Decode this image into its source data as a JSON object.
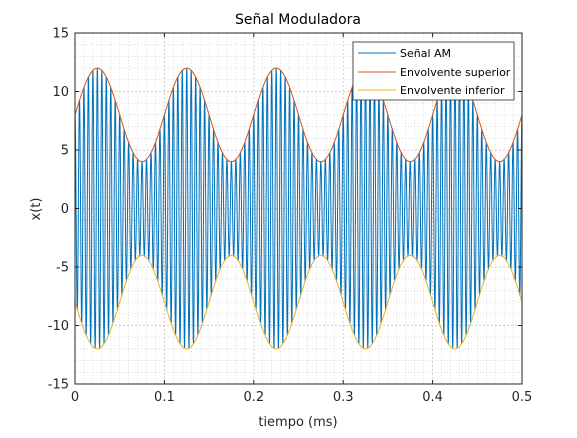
{
  "chart_data": {
    "type": "line",
    "title": "Señal Moduladora",
    "xlabel": "tiempo (ms)",
    "ylabel": "x(t)",
    "xlim": [
      0,
      0.5
    ],
    "ylim": [
      -15,
      15
    ],
    "xticks": [
      0,
      0.1,
      0.2,
      0.3,
      0.4,
      0.5
    ],
    "xtick_labels": [
      "0",
      "0.1",
      "0.2",
      "0.3",
      "0.4",
      "0.5"
    ],
    "yticks": [
      -15,
      -10,
      -5,
      0,
      5,
      10,
      15
    ],
    "ytick_labels": [
      "-15",
      "-10",
      "-5",
      "0",
      "5",
      "10",
      "15"
    ],
    "grid": true,
    "minor_grid": true,
    "legend_position": "top-right",
    "carrier_amplitude": 8,
    "modulation_amplitude": 4,
    "modulating_frequency_khz": 10,
    "carrier_frequency_khz": 200,
    "series": [
      {
        "name": "Señal AM",
        "color": "#0072BD",
        "formula": "(8 + 4*sin(2*pi*10*t)) * cos(2*pi*200*t)"
      },
      {
        "name": "Envolvente superior",
        "color": "#D95319",
        "formula": "8 + 4*sin(2*pi*10*t)"
      },
      {
        "name": "Envolvente inferior",
        "color": "#EDB120",
        "formula": "-(8 + 4*sin(2*pi*10*t))"
      }
    ]
  }
}
